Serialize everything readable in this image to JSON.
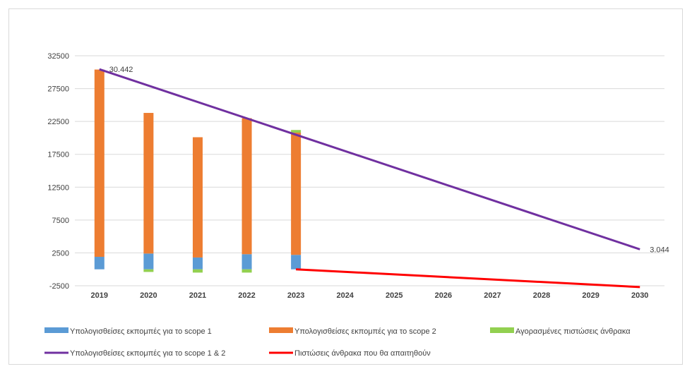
{
  "chart_data": {
    "type": "bar",
    "stacked": true,
    "categories": [
      "2019",
      "2020",
      "2021",
      "2022",
      "2023",
      "2024",
      "2025",
      "2026",
      "2027",
      "2028",
      "2029",
      "2030"
    ],
    "ylim": [
      -2500,
      32500
    ],
    "yticks": [
      -2500,
      2500,
      7500,
      12500,
      17500,
      22500,
      27500,
      32500
    ],
    "grid": true,
    "legend_position": "bottom",
    "series": [
      {
        "name": "Υπολογισθείσες εκπομπές για το scope 1",
        "type": "bar",
        "color": "#5b9bd5",
        "values": [
          1900,
          2400,
          1800,
          2300,
          2200,
          null,
          null,
          null,
          null,
          null,
          null,
          null
        ]
      },
      {
        "name": "Υπολογισθείσες εκπομπές για το scope 2",
        "type": "bar",
        "color": "#ed7d31",
        "values": [
          28500,
          21400,
          18300,
          20700,
          18600,
          null,
          null,
          null,
          null,
          null,
          null,
          null
        ]
      },
      {
        "name": "Αγορασμένες πιστώσεις άνθρακα",
        "type": "bar",
        "color": "#92d050",
        "values": [
          0,
          -400,
          -500,
          -500,
          400,
          null,
          null,
          null,
          null,
          null,
          null,
          null
        ]
      },
      {
        "name": "Υπολογισθείσες εκπομπές για το scope 1 & 2",
        "type": "line",
        "color": "#7030a0",
        "x": [
          "2019",
          "2030"
        ],
        "values": [
          30442,
          3044
        ]
      },
      {
        "name": "Πιστώσεις άνθρακα που θα απαιτηθούν",
        "type": "line",
        "color": "#ff0000",
        "x": [
          "2023",
          "2030"
        ],
        "values": [
          0,
          -2700
        ]
      }
    ],
    "data_labels": [
      {
        "x": "2019",
        "text": "30.442"
      },
      {
        "x": "2030",
        "text": "3.044"
      }
    ]
  }
}
